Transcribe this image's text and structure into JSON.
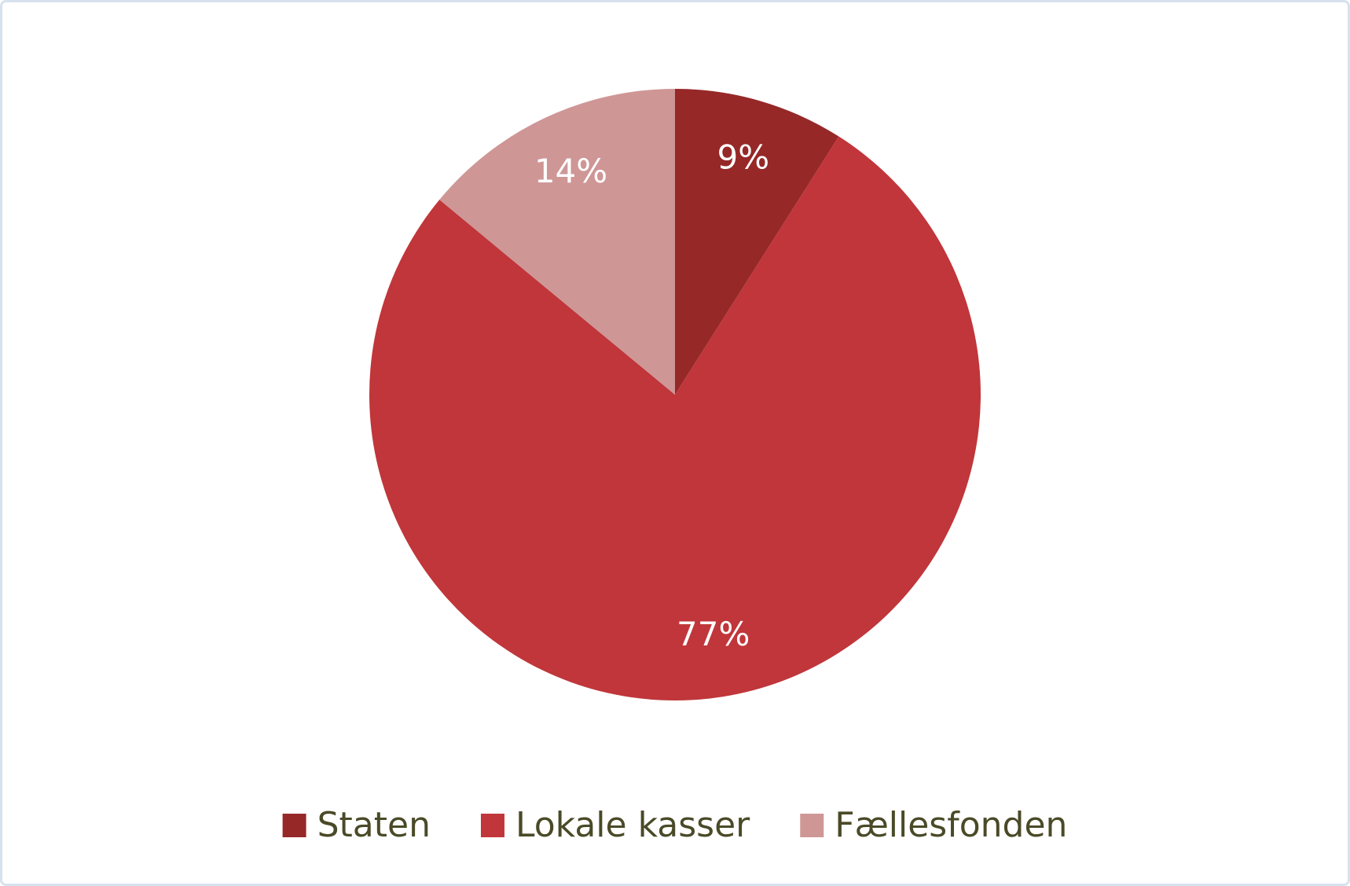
{
  "chart_data": {
    "type": "pie",
    "categories": [
      "Staten",
      "Lokale kasser",
      "Fællesfonden"
    ],
    "values": [
      9,
      77,
      14
    ],
    "value_labels": [
      "9%",
      "77%",
      "14%"
    ],
    "colors": [
      "#962828",
      "#c0363a",
      "#cf9696"
    ],
    "legend": "bottom"
  }
}
